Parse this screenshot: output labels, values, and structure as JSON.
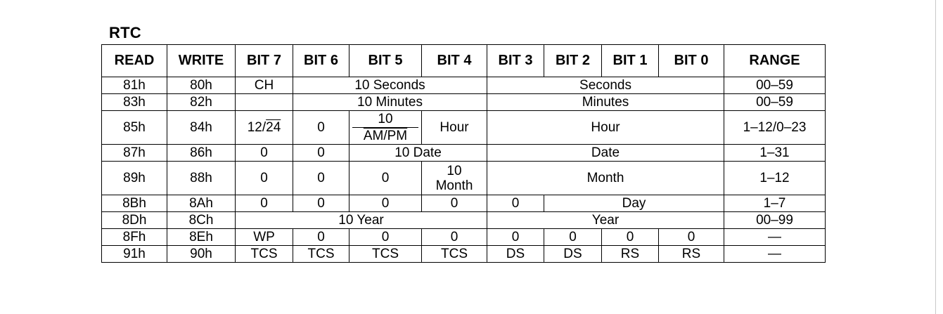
{
  "title": "RTC",
  "headers": [
    "READ",
    "WRITE",
    "BIT 7",
    "BIT 6",
    "BIT 5",
    "BIT 4",
    "BIT 3",
    "BIT 2",
    "BIT 1",
    "BIT 0",
    "RANGE"
  ],
  "rows": [
    {
      "read": "81h",
      "write": "80h",
      "bit7": "CH",
      "b6to4": "10 Seconds",
      "b3to0": "Seconds",
      "range": "00–59"
    },
    {
      "read": "83h",
      "write": "82h",
      "bit7": "",
      "b6to4": "10 Minutes",
      "b3to0": "Minutes",
      "range": "00–59"
    },
    {
      "read": "85h",
      "write": "84h",
      "bit7_prefix": "12/",
      "bit7_overline": "24",
      "bit6": "0",
      "bit5_top": "10",
      "bit5_bottom": "AM/PM",
      "bit4": "Hour",
      "b3to0": "Hour",
      "range": "1–12/0–23"
    },
    {
      "read": "87h",
      "write": "86h",
      "bit7": "0",
      "bit6": "0",
      "b5to4": "10 Date",
      "b3to0": "Date",
      "range": "1–31"
    },
    {
      "read": "89h",
      "write": "88h",
      "bit7": "0",
      "bit6": "0",
      "bit5": "0",
      "bit4_line1": "10",
      "bit4_line2": "Month",
      "b3to0": "Month",
      "range": "1–12"
    },
    {
      "read": "8Bh",
      "write": "8Ah",
      "bit7": "0",
      "bit6": "0",
      "bit5": "0",
      "bit4": "0",
      "bit3": "0",
      "b2to0": "Day",
      "range": "1–7"
    },
    {
      "read": "8Dh",
      "write": "8Ch",
      "b7to4": "10 Year",
      "b3to0": "Year",
      "range": "00–99"
    },
    {
      "read": "8Fh",
      "write": "8Eh",
      "bit7": "WP",
      "bit6": "0",
      "bit5": "0",
      "bit4": "0",
      "bit3": "0",
      "bit2": "0",
      "bit1": "0",
      "bit0": "0",
      "range": "—"
    },
    {
      "read": "91h",
      "write": "90h",
      "bit7": "TCS",
      "bit6": "TCS",
      "bit5": "TCS",
      "bit4": "TCS",
      "bit3": "DS",
      "bit2": "DS",
      "bit1": "RS",
      "bit0": "RS",
      "range": "—"
    }
  ]
}
